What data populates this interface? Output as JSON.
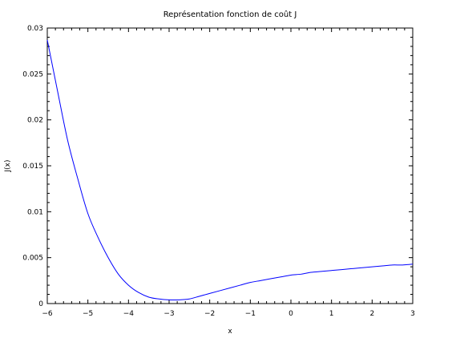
{
  "chart_data": {
    "type": "line",
    "title": "Représentation fonction de coût J",
    "xlabel": "x",
    "ylabel": "J(x)",
    "xlim": [
      -6,
      3
    ],
    "ylim": [
      0,
      0.03
    ],
    "xticks": [
      "-6",
      "-5",
      "-4",
      "-3",
      "-2",
      "-1",
      "0",
      "1",
      "2",
      "3"
    ],
    "yticks": [
      "0",
      "0.005",
      "0.01",
      "0.015",
      "0.02",
      "0.025",
      "0.03"
    ],
    "grid": false,
    "legend": "none",
    "series": [
      {
        "color": "#0000ff",
        "x": [
          -6,
          -5.75,
          -5.5,
          -5.25,
          -5,
          -4.75,
          -4.5,
          -4.25,
          -4,
          -3.75,
          -3.5,
          -3.25,
          -3,
          -2.75,
          -2.5,
          -2.25,
          -2,
          -1.75,
          -1.5,
          -1.25,
          -1,
          -0.75,
          -0.5,
          -0.25,
          0,
          0.25,
          0.5,
          0.75,
          1,
          1.25,
          1.5,
          1.75,
          2,
          2.25,
          2.5,
          2.75,
          3
        ],
        "y": [
          0.0287,
          0.0232,
          0.0178,
          0.0136,
          0.0098,
          0.0072,
          0.005,
          0.0032,
          0.002,
          0.0012,
          0.0007,
          0.0005,
          0.0004,
          0.0004,
          0.0005,
          0.0008,
          0.0011,
          0.0014,
          0.0017,
          0.002,
          0.0023,
          0.0025,
          0.0027,
          0.0029,
          0.0031,
          0.0032,
          0.0034,
          0.0035,
          0.0036,
          0.0037,
          0.0038,
          0.0039,
          0.004,
          0.0041,
          0.0042,
          0.0042,
          0.0043
        ]
      }
    ]
  }
}
